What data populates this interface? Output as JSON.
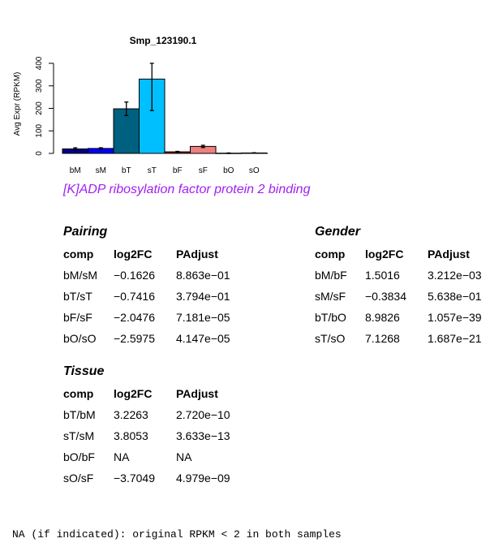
{
  "chart_data": {
    "type": "bar",
    "title": "Smp_123190.1",
    "ylabel": "Avg Expr (RPKM)",
    "xlabel": "",
    "ylim": [
      0,
      400
    ],
    "yticks": [
      0,
      100,
      200,
      300,
      400
    ],
    "categories": [
      "bM",
      "sM",
      "bT",
      "sT",
      "bF",
      "sF",
      "bO",
      "sO"
    ],
    "values": [
      20,
      22,
      198,
      330,
      7,
      31,
      1,
      2
    ],
    "error_low": [
      15,
      19,
      168,
      190,
      5,
      26,
      0,
      1
    ],
    "error_high": [
      25,
      25,
      228,
      400,
      9,
      36,
      2,
      3
    ],
    "colors": [
      "#00008b",
      "#0000ff",
      "#006080",
      "#00bfff",
      "#8b1a1a",
      "#f08080",
      "#ffffff",
      "#ffffff"
    ],
    "grid": false
  },
  "annotation": "[K]ADP ribosylation factor protein 2 binding",
  "pairing": {
    "title": "Pairing",
    "headers": [
      "comp",
      "log2FC",
      "PAdjust"
    ],
    "rows": [
      [
        "bM/sM",
        "−0.1626",
        "8.863e−01"
      ],
      [
        "bT/sT",
        "−0.7416",
        "3.794e−01"
      ],
      [
        "bF/sF",
        "−2.0476",
        "7.181e−05"
      ],
      [
        "bO/sO",
        "−2.5975",
        "4.147e−05"
      ]
    ]
  },
  "gender": {
    "title": "Gender",
    "headers": [
      "comp",
      "log2FC",
      "PAdjust"
    ],
    "rows": [
      [
        "bM/bF",
        "1.5016",
        "3.212e−03"
      ],
      [
        "sM/sF",
        "−0.3834",
        "5.638e−01"
      ],
      [
        "bT/bO",
        "8.9826",
        "1.057e−39"
      ],
      [
        "sT/sO",
        "7.1268",
        "1.687e−21"
      ]
    ]
  },
  "tissue": {
    "title": "Tissue",
    "headers": [
      "comp",
      "log2FC",
      "PAdjust"
    ],
    "rows": [
      [
        "bT/bM",
        "3.2263",
        "2.720e−10"
      ],
      [
        "sT/sM",
        "3.8053",
        "3.633e−13"
      ],
      [
        "bO/bF",
        "NA",
        "NA"
      ],
      [
        "sO/sF",
        "−3.7049",
        "4.979e−09"
      ]
    ]
  },
  "footnote": "NA (if indicated): original RPKM < 2 in both samples"
}
